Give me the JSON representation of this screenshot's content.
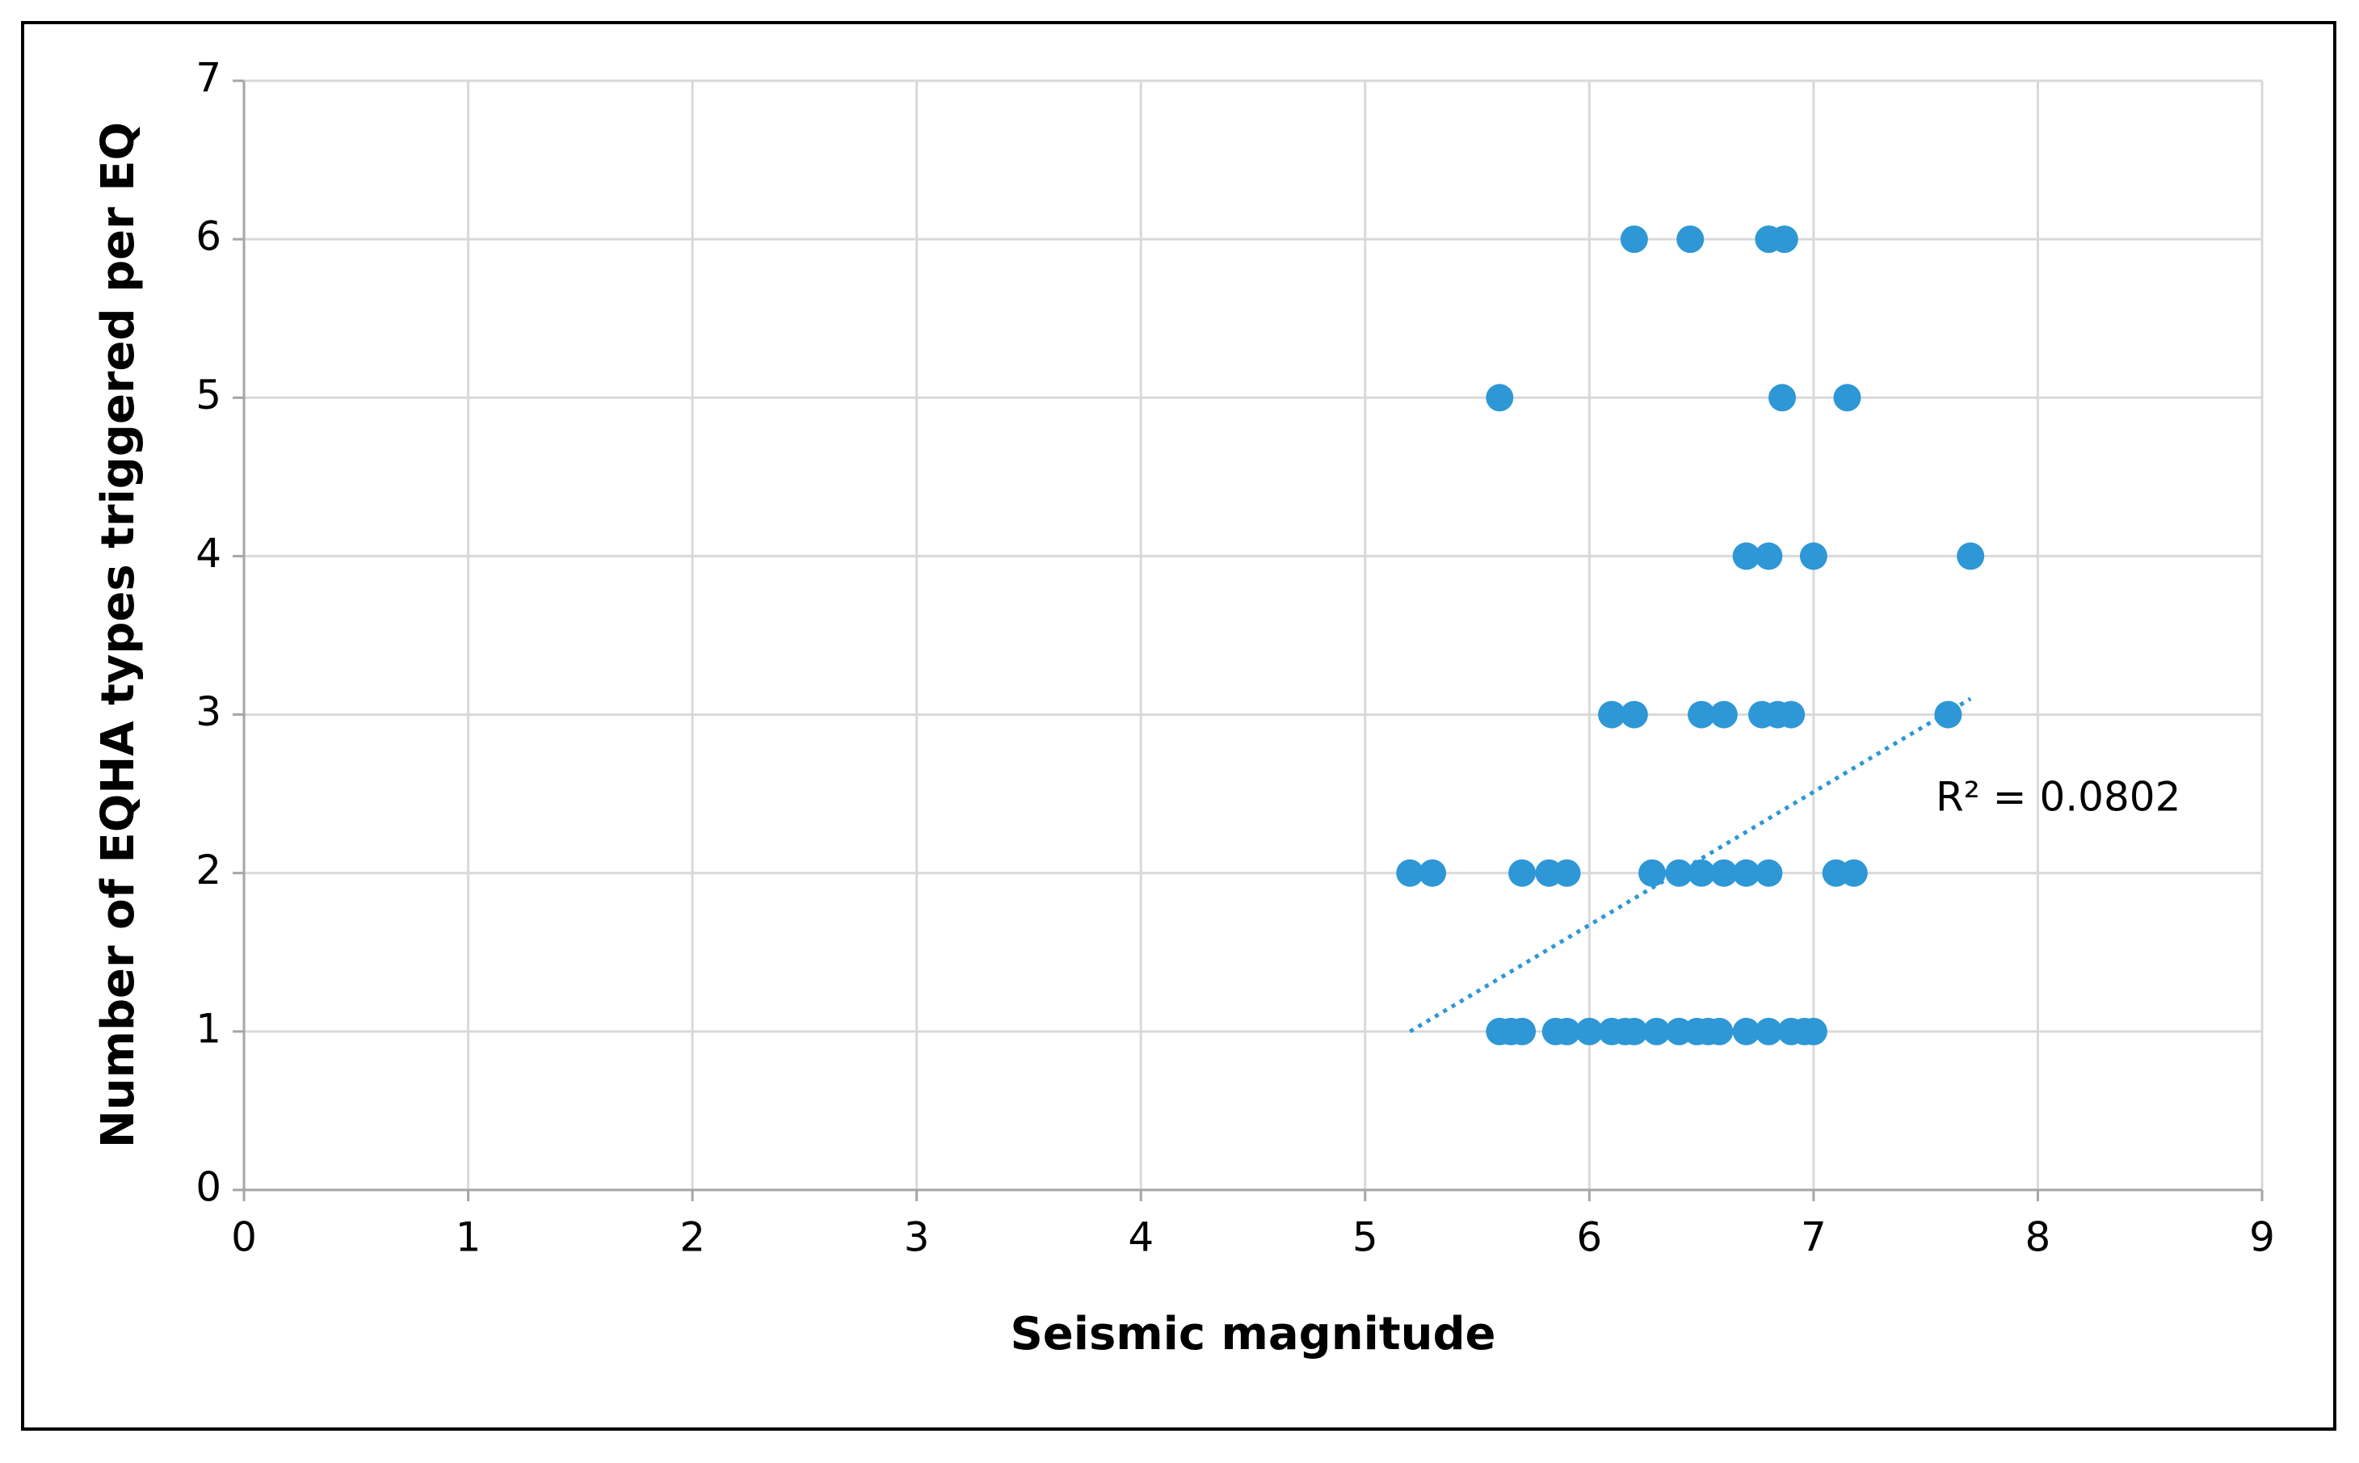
{
  "chart_data": {
    "type": "scatter",
    "xlabel": "Seismic magnitude",
    "ylabel": "Number of EQHA types triggered per EQ",
    "color": "#2e97d6",
    "x": [
      6.2,
      6.45,
      6.8,
      6.87,
      5.6,
      6.86,
      7.15,
      6.7,
      6.8,
      7.0,
      7.7,
      6.1,
      6.2,
      6.5,
      6.6,
      6.77,
      6.84,
      6.9,
      7.6,
      5.2,
      5.3,
      5.7,
      5.82,
      5.9,
      6.28,
      6.4,
      6.5,
      6.6,
      6.7,
      6.8,
      7.1,
      7.18,
      5.6,
      5.65,
      5.7,
      5.85,
      5.9,
      6.0,
      6.1,
      6.16,
      6.2,
      6.3,
      6.4,
      6.48,
      6.53,
      6.58,
      6.7,
      6.8,
      6.9,
      6.96,
      7.0
    ],
    "values": [
      6,
      6,
      6,
      6,
      5,
      5,
      5,
      4,
      4,
      4,
      4,
      3,
      3,
      3,
      3,
      3,
      3,
      3,
      3,
      2,
      2,
      2,
      2,
      2,
      2,
      2,
      2,
      2,
      2,
      2,
      2,
      2,
      1,
      1,
      1,
      1,
      1,
      1,
      1,
      1,
      1,
      1,
      1,
      1,
      1,
      1,
      1,
      1,
      1,
      1,
      1
    ],
    "trendline": {
      "x": [
        5.2,
        7.7
      ],
      "y": [
        1.0,
        3.1
      ]
    },
    "annotation": "R² = 0.0802",
    "xlim": [
      0,
      9
    ],
    "xticks": [
      0,
      1,
      2,
      3,
      4,
      5,
      6,
      7,
      8,
      9
    ],
    "ylim": [
      0,
      7
    ],
    "yticks": [
      0,
      1,
      2,
      3,
      4,
      5,
      6,
      7
    ],
    "grid": true
  }
}
